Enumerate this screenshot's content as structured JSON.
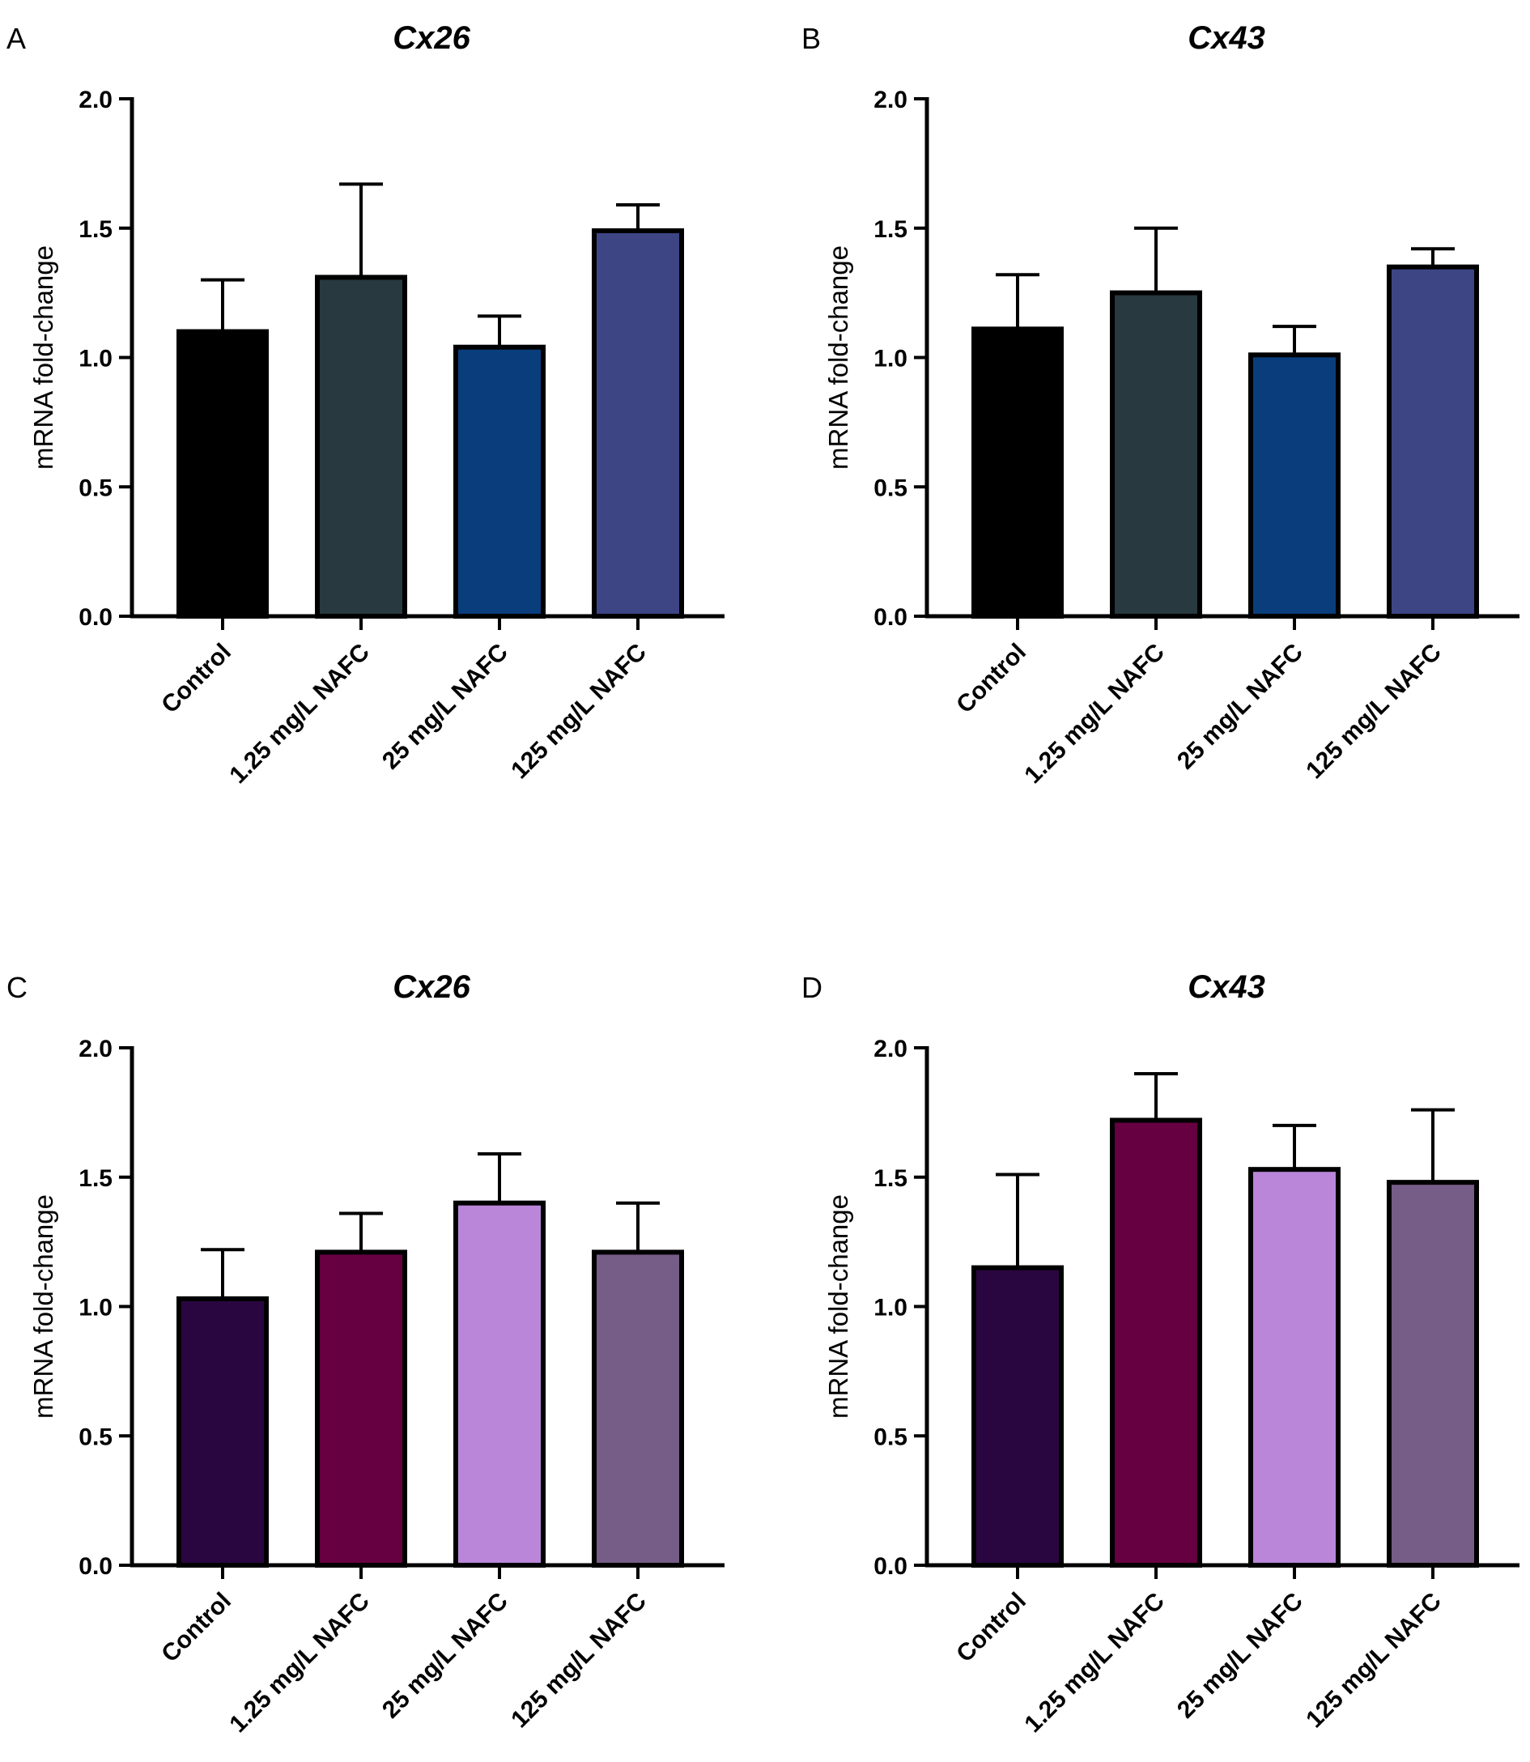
{
  "chart_data": [
    {
      "panel": "A",
      "type": "bar",
      "title": "Cx26",
      "ylabel": "mRNA fold-change",
      "xlabel": "",
      "ylim": [
        0,
        2.0
      ],
      "yticks": [
        0.0,
        0.5,
        1.0,
        1.5,
        2.0
      ],
      "ytick_labels": [
        "0.0",
        "0.5",
        "1.0",
        "1.5",
        "2.0"
      ],
      "categories": [
        "Control",
        "1.25 mg/L NAFC",
        "25 mg/L NAFC",
        "125 mg/L NAFC"
      ],
      "values": [
        1.1,
        1.31,
        1.04,
        1.49
      ],
      "errors": [
        0.2,
        0.36,
        0.12,
        0.1
      ],
      "colors": [
        "#000000",
        "#28393f",
        "#0a3d7b",
        "#3e4585"
      ]
    },
    {
      "panel": "B",
      "type": "bar",
      "title": "Cx43",
      "ylabel": "mRNA fold-change",
      "xlabel": "",
      "ylim": [
        0,
        2.0
      ],
      "yticks": [
        0.0,
        0.5,
        1.0,
        1.5,
        2.0
      ],
      "ytick_labels": [
        "0.0",
        "0.5",
        "1.0",
        "1.5",
        "2.0"
      ],
      "categories": [
        "Control",
        "1.25 mg/L NAFC",
        "25 mg/L NAFC",
        "125 mg/L NAFC"
      ],
      "values": [
        1.11,
        1.25,
        1.01,
        1.35
      ],
      "errors": [
        0.21,
        0.25,
        0.11,
        0.07
      ],
      "colors": [
        "#000000",
        "#28393f",
        "#0a3d7b",
        "#3e4585"
      ]
    },
    {
      "panel": "C",
      "type": "bar",
      "title": "Cx26",
      "ylabel": "mRNA fold-change",
      "xlabel": "",
      "ylim": [
        0,
        2.0
      ],
      "yticks": [
        0.0,
        0.5,
        1.0,
        1.5,
        2.0
      ],
      "ytick_labels": [
        "0.0",
        "0.5",
        "1.0",
        "1.5",
        "2.0"
      ],
      "categories": [
        "Control",
        "1.25 mg/L NAFC",
        "25 mg/L NAFC",
        "125 mg/L NAFC"
      ],
      "values": [
        1.03,
        1.21,
        1.4,
        1.21
      ],
      "errors": [
        0.19,
        0.15,
        0.19,
        0.19
      ],
      "colors": [
        "#2a0640",
        "#660041",
        "#b986d9",
        "#765d88"
      ]
    },
    {
      "panel": "D",
      "type": "bar",
      "title": "Cx43",
      "ylabel": "mRNA fold-change",
      "xlabel": "",
      "ylim": [
        0,
        2.0
      ],
      "yticks": [
        0.0,
        0.5,
        1.0,
        1.5,
        2.0
      ],
      "ytick_labels": [
        "0.0",
        "0.5",
        "1.0",
        "1.5",
        "2.0"
      ],
      "categories": [
        "Control",
        "1.25 mg/L NAFC",
        "25 mg/L NAFC",
        "125 mg/L NAFC"
      ],
      "values": [
        1.15,
        1.72,
        1.53,
        1.48
      ],
      "errors": [
        0.36,
        0.18,
        0.17,
        0.28
      ],
      "colors": [
        "#2a0640",
        "#660041",
        "#b986d9",
        "#765d88"
      ]
    }
  ]
}
